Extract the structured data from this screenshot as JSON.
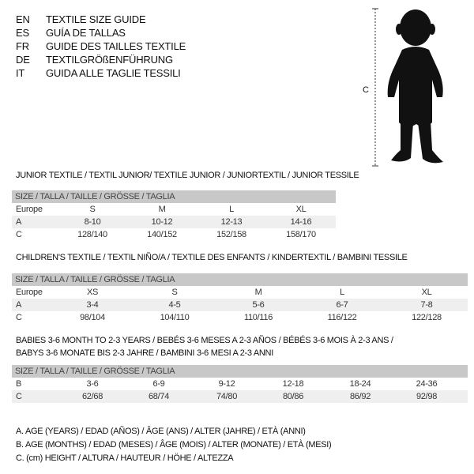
{
  "languages": [
    {
      "code": "EN",
      "text": "TEXTILE SIZE GUIDE"
    },
    {
      "code": "ES",
      "text": "GUÍA DE TALLAS"
    },
    {
      "code": "FR",
      "text": "GUIDE DES TAILLES TEXTILE"
    },
    {
      "code": "DE",
      "text": "TEXTILGRÖßENFÜHRUNG"
    },
    {
      "code": "IT",
      "text": "GUIDA ALLE TAGLIE TESSILI"
    }
  ],
  "figure": {
    "measure_label": "C",
    "icon": "baby-silhouette"
  },
  "size_header": "SIZE / TALLA / TAILLE / GRÖSSE / TAGLIA",
  "tables": [
    {
      "title": "JUNIOR TEXTILE / TEXTIL JUNIOR/ TEXTILE JUNIOR / JUNIORTEXTIL / JUNIOR TESSILE",
      "rows": [
        {
          "label": "Europe",
          "values": [
            "S",
            "M",
            "L",
            "XL"
          ]
        },
        {
          "label": "A",
          "values": [
            "8-10",
            "10-12",
            "12-13",
            "14-16"
          ]
        },
        {
          "label": "C",
          "values": [
            "128/140",
            "140/152",
            "152/158",
            "158/170"
          ]
        }
      ]
    },
    {
      "title": "CHILDREN'S TEXTILE / TEXTIL NIÑO/A / TEXTILE DES ENFANTS / KINDERTEXTIL / BAMBINI TESSILE",
      "rows": [
        {
          "label": "Europe",
          "values": [
            "XS",
            "S",
            "M",
            "L",
            "XL"
          ]
        },
        {
          "label": "A",
          "values": [
            "3-4",
            "4-5",
            "5-6",
            "6-7",
            "7-8"
          ]
        },
        {
          "label": "C",
          "values": [
            "98/104",
            "104/110",
            "110/116",
            "116/122",
            "122/128"
          ]
        }
      ]
    },
    {
      "title": "BABIES 3-6 MONTH TO 2-3 YEARS / BEBÉS 3-6 MESES A 2-3 AÑOS / BÉBÉS 3-6 MOIS À 2-3 ANS /",
      "title2": "BABYS 3-6 MONATE BIS 2-3 JAHRE / BAMBINI 3-6 MESI A 2-3 ANNI",
      "rows": [
        {
          "label": "B",
          "values": [
            "3-6",
            "6-9",
            "9-12",
            "12-18",
            "18-24",
            "24-36"
          ]
        },
        {
          "label": "C",
          "values": [
            "62/68",
            "68/74",
            "74/80",
            "80/86",
            "86/92",
            "92/98"
          ]
        }
      ]
    }
  ],
  "legend": [
    "A. AGE (YEARS) / EDAD (AÑOS) / ÂGE (ANS) / ALTER (JAHRE) / ETÀ (ANNI)",
    "B. AGE (MONTHS) / EDAD (MESES) / ÂGE (MOIS) / ALTER (MONATE) / ETÀ (MESI)",
    "C. (cm) HEIGHT / ALTURA / HAUTEUR / HÖHE / ALTEZZA"
  ]
}
